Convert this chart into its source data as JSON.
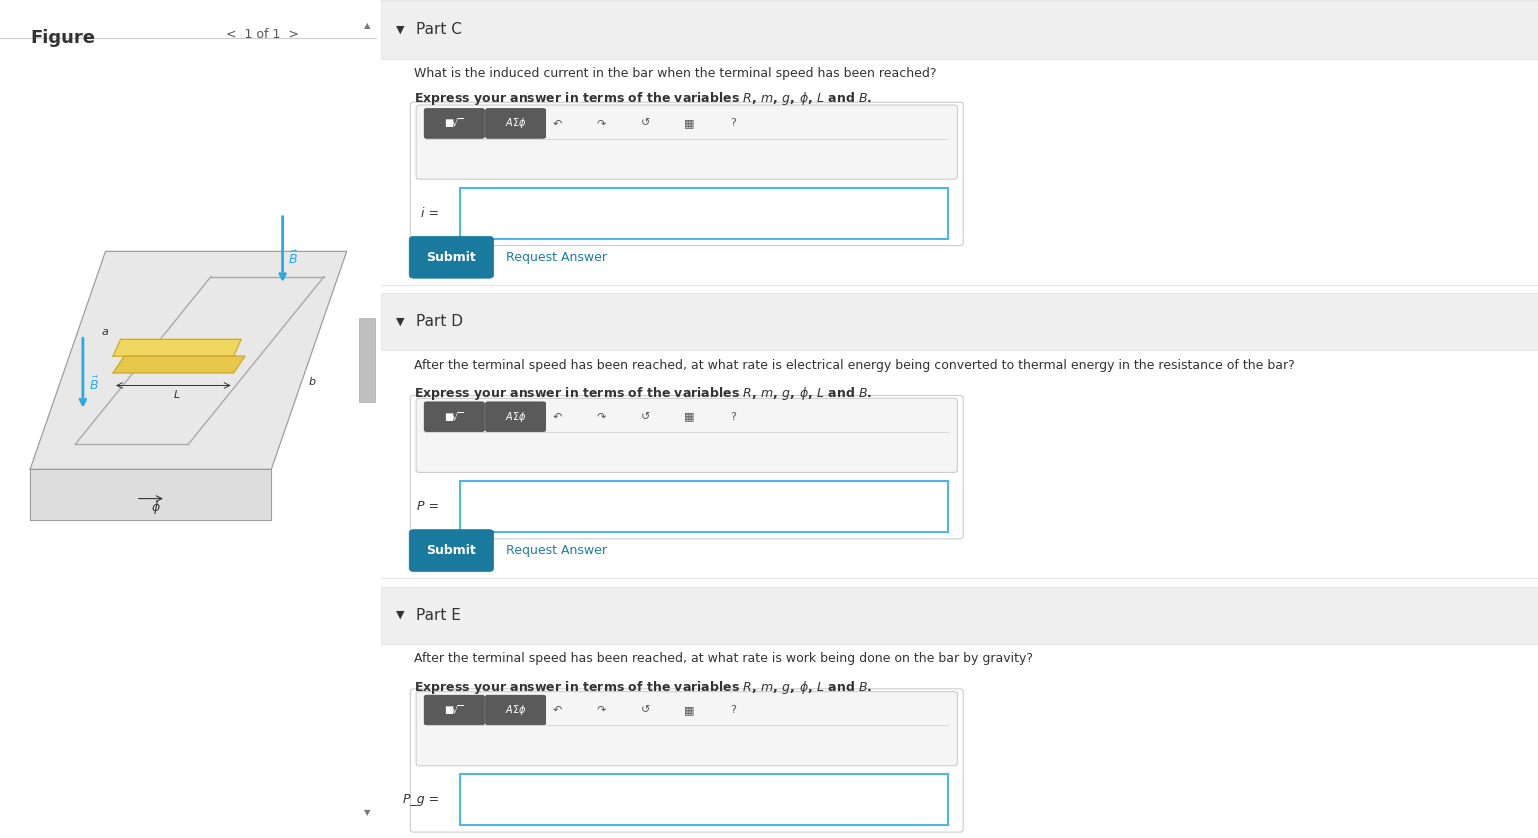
{
  "bg_color": "#f5f5f5",
  "white": "#ffffff",
  "section_bg": "#efefef",
  "teal_btn": "#1a7a9e",
  "border_gray": "#cccccc",
  "dark_gray": "#555555",
  "text_color": "#333333",
  "link_color": "#1e7ea1",
  "cyan_arrow": "#29abe2",
  "part_c_label": "Part C",
  "part_d_label": "Part D",
  "part_e_label": "Part E",
  "part_c_q": "What is the induced current in the bar when the terminal speed has been reached?",
  "part_d_q": "After the terminal speed has been reached, at what rate is electrical energy being converted to thermal energy in the resistance of the bar?",
  "part_e_q": "After the terminal speed has been reached, at what rate is work being done on the bar by gravity?",
  "express_text": "Express your answer in terms of the variables ",
  "i_label": "i =",
  "P_label": "P =",
  "Pg_label": "P_g =",
  "figure_label": "Figure",
  "nav_label": "1 of 1"
}
